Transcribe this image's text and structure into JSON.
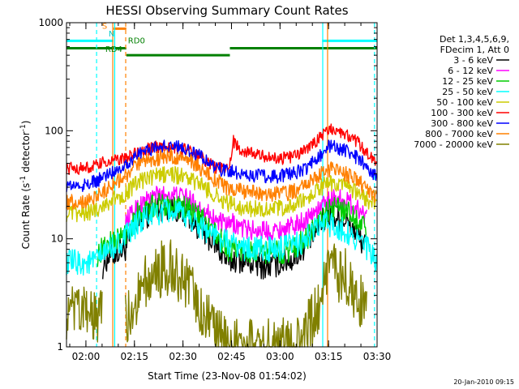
{
  "chart_data": {
    "type": "line",
    "title": "HESSI Observing Summary Count Rates",
    "xlabel": "Start Time (23-Nov-08 01:54:02)",
    "ylabel": "Count Rate (s^-1 detector^-1)",
    "ylabel_parts": {
      "main": "Count Rate (s",
      "sup1": "-1",
      "mid": " detector",
      "sup2": "-1",
      "end": ")"
    },
    "yscale": "log",
    "ylim": [
      1,
      1000
    ],
    "xlim_minutes": [
      0,
      96
    ],
    "x_ticks": [
      {
        "label": "02:00",
        "min": 6
      },
      {
        "label": "02:15",
        "min": 21
      },
      {
        "label": "02:30",
        "min": 36
      },
      {
        "label": "02:45",
        "min": 51
      },
      {
        "label": "03:00",
        "min": 66
      },
      {
        "label": "03:15",
        "min": 81
      },
      {
        "label": "03:30",
        "min": 96
      }
    ],
    "y_ticks": [
      {
        "label": "1",
        "v": 1
      },
      {
        "label": "10",
        "v": 10
      },
      {
        "label": "100",
        "v": 100
      },
      {
        "label": "1000",
        "v": 1000
      }
    ],
    "legend": {
      "position": "right",
      "header": [
        "Det 1,3,4,5,6,9,",
        "FDecim 1, Att 0"
      ]
    },
    "series": [
      {
        "name": "3 - 6 keV",
        "color": "#000000",
        "x": [
          0,
          5,
          8,
          9.5,
          11,
          13,
          18,
          22,
          27,
          32,
          37,
          42,
          46,
          50,
          51.5,
          53,
          57,
          62,
          66,
          70,
          74,
          78,
          81,
          83,
          86,
          90,
          93,
          96
        ],
        "y": [
          null,
          null,
          null,
          null,
          5.5,
          7,
          8,
          14,
          19,
          20,
          17,
          12,
          9,
          6,
          6.5,
          6.5,
          6,
          5.5,
          6,
          6.5,
          9,
          13,
          17,
          16,
          15,
          11,
          8,
          null
        ]
      },
      {
        "name": "6 - 12 keV",
        "color": "#ff00ff",
        "x": [
          0,
          5,
          8,
          9.5,
          11,
          13,
          18,
          22,
          27,
          32,
          37,
          42,
          46,
          50,
          51.5,
          53,
          57,
          62,
          66,
          70,
          74,
          78,
          81,
          83,
          86,
          90,
          93,
          96
        ],
        "y": [
          null,
          null,
          null,
          null,
          null,
          null,
          14,
          20,
          25,
          26,
          24,
          19,
          15,
          13,
          14,
          13,
          12,
          12,
          12,
          13,
          15,
          19,
          23,
          24,
          23,
          19,
          16,
          null
        ]
      },
      {
        "name": "12 - 25 keV",
        "color": "#00cc00",
        "x": [
          0,
          5,
          8,
          9.5,
          11,
          13,
          18,
          22,
          27,
          32,
          37,
          42,
          46,
          50,
          51.5,
          53,
          57,
          62,
          66,
          70,
          74,
          78,
          81,
          83,
          86,
          90,
          93,
          96
        ],
        "y": [
          null,
          null,
          null,
          7,
          8,
          9,
          11,
          17,
          20,
          21,
          19,
          15,
          11,
          8,
          8,
          8,
          7.5,
          7.5,
          7.5,
          8,
          10,
          14,
          18,
          19,
          19,
          15,
          12,
          null
        ]
      },
      {
        "name": "25 - 50 keV",
        "color": "#00ffff",
        "x": [
          0,
          5,
          8,
          9.5,
          11,
          13,
          18,
          22,
          27,
          32,
          37,
          42,
          46,
          50,
          51.5,
          53,
          57,
          62,
          66,
          70,
          74,
          78,
          81,
          83,
          86,
          90,
          93,
          96
        ],
        "y": [
          6,
          6,
          6,
          6.5,
          7,
          8,
          10,
          14,
          17,
          18,
          16,
          13,
          10.5,
          9,
          9,
          8.5,
          8,
          8,
          8,
          8.5,
          10,
          13,
          14,
          13,
          12,
          10,
          8,
          6
        ]
      },
      {
        "name": "50 - 100 keV",
        "color": "#cccc00",
        "x": [
          0,
          5,
          8,
          9.5,
          11,
          13,
          18,
          22,
          27,
          32,
          37,
          42,
          46,
          50,
          51.5,
          53,
          57,
          62,
          66,
          70,
          74,
          78,
          81,
          83,
          86,
          90,
          93,
          96
        ],
        "y": [
          17,
          17,
          18,
          19,
          20,
          22,
          26,
          33,
          38,
          40,
          37,
          31,
          25,
          21,
          21,
          20,
          19,
          19,
          19,
          20,
          23,
          29,
          33,
          32,
          30,
          26,
          23,
          20
        ]
      },
      {
        "name": "100 - 300 keV",
        "color": "#ff0000",
        "x": [
          0,
          5,
          8,
          9.5,
          11,
          13,
          18,
          22,
          27,
          32,
          37,
          42,
          46,
          50,
          51.5,
          53,
          57,
          62,
          66,
          70,
          74,
          78,
          81,
          83,
          86,
          90,
          93,
          96
        ],
        "y": [
          45,
          45,
          46,
          48,
          50,
          52,
          55,
          63,
          70,
          72,
          67,
          56,
          46,
          43,
          80,
          70,
          62,
          57,
          55,
          58,
          66,
          85,
          105,
          100,
          95,
          78,
          62,
          48
        ]
      },
      {
        "name": "300 - 800 keV",
        "color": "#0000ff",
        "x": [
          0,
          5,
          8,
          9.5,
          11,
          13,
          18,
          22,
          27,
          32,
          37,
          42,
          46,
          50,
          51.5,
          53,
          57,
          62,
          66,
          70,
          74,
          78,
          81,
          83,
          86,
          90,
          93,
          96
        ],
        "y": [
          31,
          31,
          33,
          34,
          37,
          40,
          48,
          60,
          70,
          73,
          68,
          56,
          46,
          41,
          42,
          41,
          39,
          38,
          38,
          40,
          45,
          58,
          72,
          70,
          67,
          56,
          46,
          37
        ]
      },
      {
        "name": "800 - 7000 keV",
        "color": "#ff8000",
        "x": [
          0,
          5,
          8,
          9.5,
          11,
          13,
          18,
          22,
          27,
          32,
          37,
          42,
          46,
          50,
          51.5,
          53,
          57,
          62,
          66,
          70,
          74,
          78,
          81,
          83,
          86,
          90,
          93,
          96
        ],
        "y": [
          22,
          22,
          24,
          25,
          27,
          30,
          37,
          48,
          55,
          58,
          54,
          44,
          35,
          29,
          29,
          28,
          27,
          26,
          26,
          27,
          31,
          38,
          44,
          43,
          40,
          34,
          29,
          24
        ]
      },
      {
        "name": "7000 - 20000 keV",
        "color": "#808000",
        "x": [
          0,
          5,
          8,
          9.5,
          11,
          13,
          18,
          22,
          27,
          32,
          37,
          42,
          46,
          50,
          51.5,
          53,
          57,
          62,
          66,
          70,
          74,
          78,
          81,
          83,
          86,
          90,
          93,
          96
        ],
        "y": [
          2,
          2,
          2,
          2,
          2,
          null,
          1.6,
          3,
          5,
          5.5,
          4,
          2,
          1.3,
          1,
          1,
          1,
          1,
          1,
          1,
          1,
          1.3,
          2.5,
          4.5,
          5,
          4.5,
          3,
          2,
          null
        ]
      }
    ],
    "annotations": [
      {
        "label": "S",
        "color": "#ff8000",
        "x_min": 11,
        "level": 850
      },
      {
        "label": "N",
        "color": "#00cccc",
        "x_min": 13,
        "level": 720
      },
      {
        "label": "RD0",
        "color": "#008000",
        "x_min": 19,
        "level": 620
      },
      {
        "label": "RD4",
        "color": "#008000",
        "x_min": 12,
        "level": 520
      }
    ],
    "flags": {
      "saa": {
        "color": "#00ffff",
        "level": 680,
        "segments": [
          [
            0,
            14.5
          ],
          [
            79,
            96
          ]
        ]
      },
      "attenuator": {
        "color": "#ff8000",
        "level": 880,
        "segments": [
          [
            14.5,
            18.5
          ]
        ]
      },
      "decimation_rd0": {
        "color": "#008000",
        "level": 580,
        "segments": [
          [
            0,
            18.5
          ],
          [
            50.5,
            96
          ]
        ]
      },
      "decimation_rd4": {
        "color": "#008000",
        "level": 500,
        "segments": [
          [
            18.5,
            50.5
          ]
        ]
      }
    },
    "vlines": [
      {
        "x_min": 9.3,
        "color": "#00ffff",
        "style": "dashed"
      },
      {
        "x_min": 14.3,
        "color": "#ff8000",
        "style": "solid"
      },
      {
        "x_min": 14.9,
        "color": "#00ffff",
        "style": "solid"
      },
      {
        "x_min": 18.3,
        "color": "#ff8000",
        "style": "dashed"
      },
      {
        "x_min": 79.2,
        "color": "#00ffff",
        "style": "solid"
      },
      {
        "x_min": 80.7,
        "color": "#ff8000",
        "style": "solid"
      },
      {
        "x_min": 95.2,
        "color": "#00ffff",
        "style": "dashed"
      }
    ],
    "grid": false
  },
  "timestamp": "20-Jan-2010 09:15"
}
